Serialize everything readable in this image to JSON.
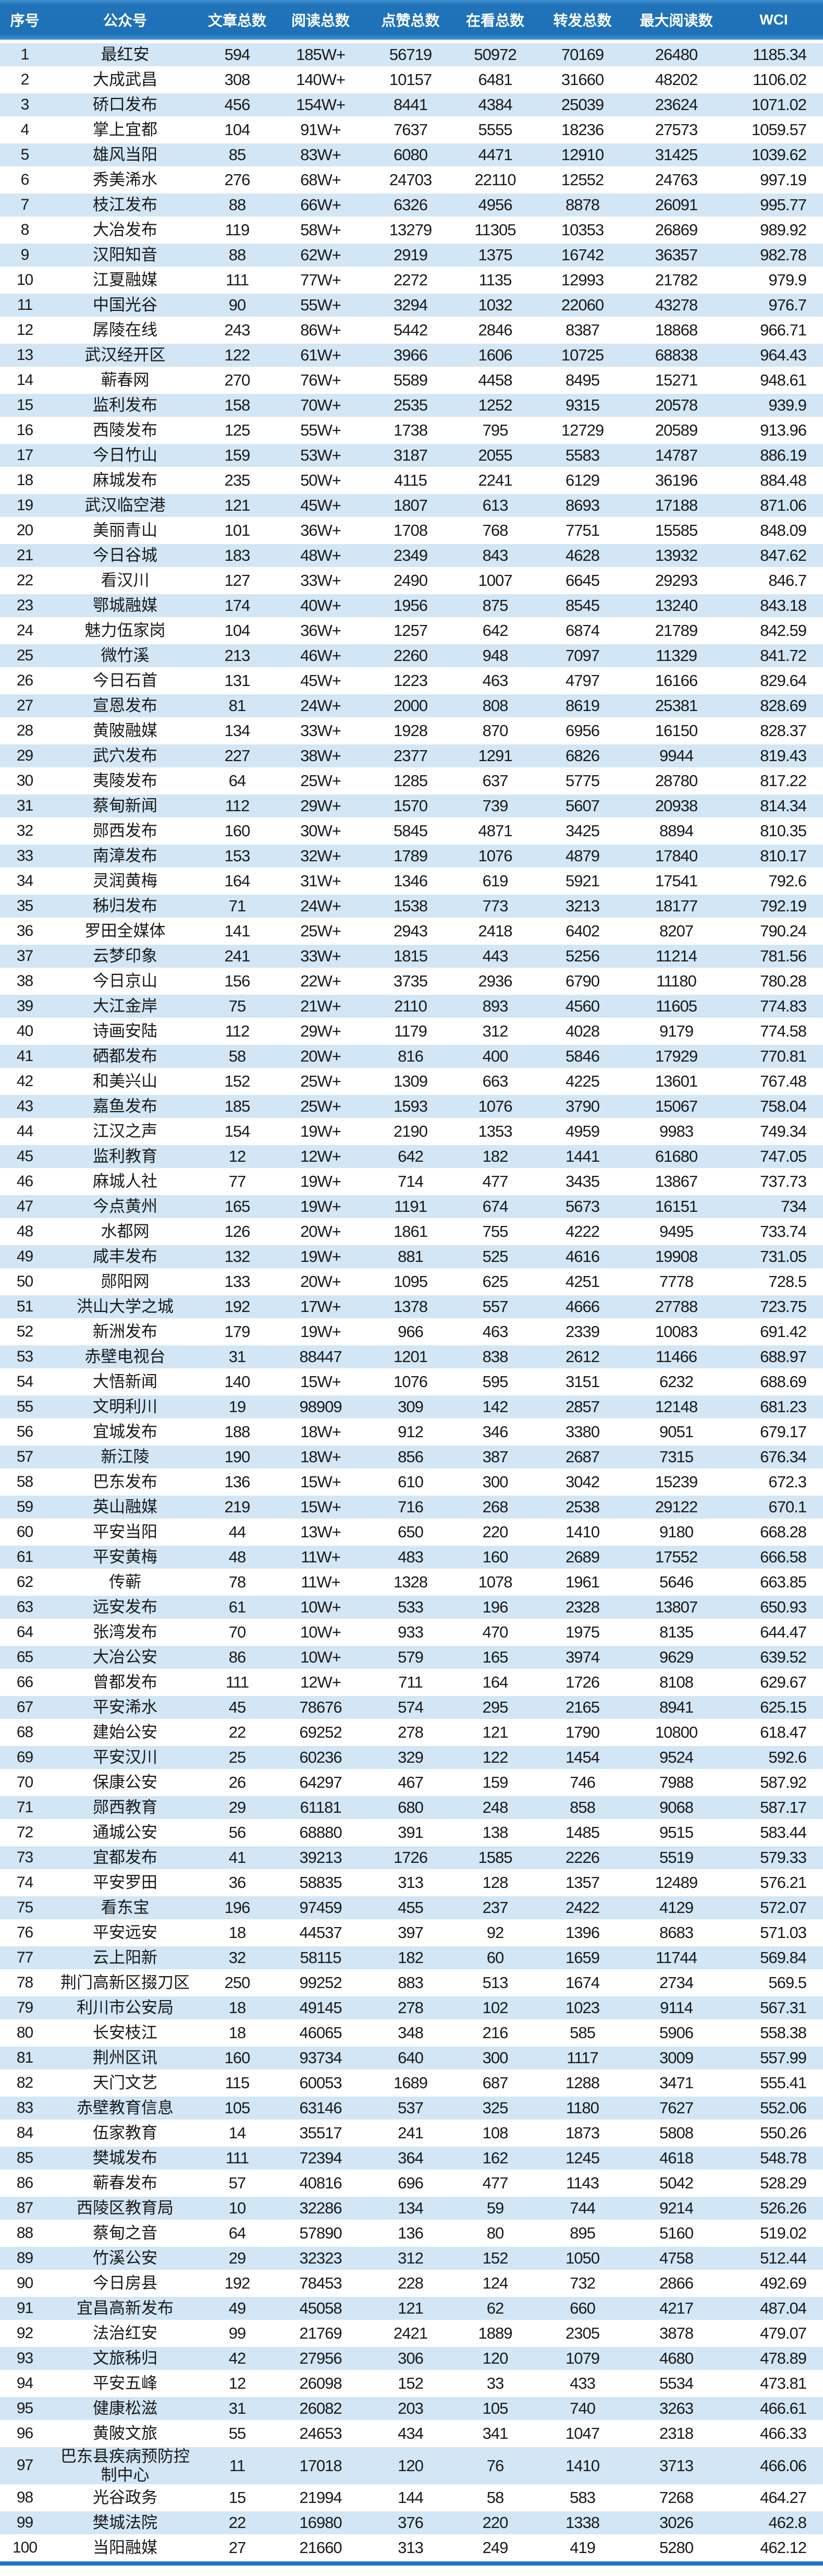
{
  "colors": {
    "header_bg": "#1F72B8",
    "header_text": "#FFFFFF",
    "row_alt_bg": "#D2E6F5",
    "row_bg": "#FFFFFF",
    "body_text": "#1A1A1A",
    "footer_bar": "#2176C7"
  },
  "table": {
    "columns": [
      "序号",
      "公众号",
      "文章总数",
      "阅读总数",
      "点赞总数",
      "在看总数",
      "转发总数",
      "最大阅读数",
      "WCI"
    ],
    "rows": [
      [
        "1",
        "最红安",
        "594",
        "185W+",
        "56719",
        "50972",
        "70169",
        "26480",
        "1185.34"
      ],
      [
        "2",
        "大成武昌",
        "308",
        "140W+",
        "10157",
        "6481",
        "31660",
        "48202",
        "1106.02"
      ],
      [
        "3",
        "硚口发布",
        "456",
        "154W+",
        "8441",
        "4384",
        "25039",
        "23624",
        "1071.02"
      ],
      [
        "4",
        "掌上宜都",
        "104",
        "91W+",
        "7637",
        "5555",
        "18236",
        "27573",
        "1059.57"
      ],
      [
        "5",
        "雄风当阳",
        "85",
        "83W+",
        "6080",
        "4471",
        "12910",
        "31425",
        "1039.62"
      ],
      [
        "6",
        "秀美浠水",
        "276",
        "68W+",
        "24703",
        "22110",
        "12552",
        "24763",
        "997.19"
      ],
      [
        "7",
        "枝江发布",
        "88",
        "66W+",
        "6326",
        "4956",
        "8878",
        "26091",
        "995.77"
      ],
      [
        "8",
        "大冶发布",
        "119",
        "58W+",
        "13279",
        "11305",
        "10353",
        "26869",
        "989.92"
      ],
      [
        "9",
        "汉阳知音",
        "88",
        "62W+",
        "2919",
        "1375",
        "16742",
        "36357",
        "982.78"
      ],
      [
        "10",
        "江夏融媒",
        "111",
        "77W+",
        "2272",
        "1135",
        "12993",
        "21782",
        "979.9"
      ],
      [
        "11",
        "中国光谷",
        "90",
        "55W+",
        "3294",
        "1032",
        "22060",
        "43278",
        "976.7"
      ],
      [
        "12",
        "孱陵在线",
        "243",
        "86W+",
        "5442",
        "2846",
        "8387",
        "18868",
        "966.71"
      ],
      [
        "13",
        "武汉经开区",
        "122",
        "61W+",
        "3966",
        "1606",
        "10725",
        "68838",
        "964.43"
      ],
      [
        "14",
        "蕲春网",
        "270",
        "76W+",
        "5589",
        "4458",
        "8495",
        "15271",
        "948.61"
      ],
      [
        "15",
        "监利发布",
        "158",
        "70W+",
        "2535",
        "1252",
        "9315",
        "20578",
        "939.9"
      ],
      [
        "16",
        "西陵发布",
        "125",
        "55W+",
        "1738",
        "795",
        "12729",
        "20589",
        "913.96"
      ],
      [
        "17",
        "今日竹山",
        "159",
        "53W+",
        "3187",
        "2055",
        "5583",
        "14787",
        "886.19"
      ],
      [
        "18",
        "麻城发布",
        "235",
        "50W+",
        "4115",
        "2241",
        "6129",
        "36196",
        "884.48"
      ],
      [
        "19",
        "武汉临空港",
        "121",
        "45W+",
        "1807",
        "613",
        "8693",
        "17188",
        "871.06"
      ],
      [
        "20",
        "美丽青山",
        "101",
        "36W+",
        "1708",
        "768",
        "7751",
        "15585",
        "848.09"
      ],
      [
        "21",
        "今日谷城",
        "183",
        "48W+",
        "2349",
        "843",
        "4628",
        "13932",
        "847.62"
      ],
      [
        "22",
        "看汉川",
        "127",
        "33W+",
        "2490",
        "1007",
        "6645",
        "29293",
        "846.7"
      ],
      [
        "23",
        "鄂城融媒",
        "174",
        "40W+",
        "1956",
        "875",
        "8545",
        "13240",
        "843.18"
      ],
      [
        "24",
        "魅力伍家岗",
        "104",
        "36W+",
        "1257",
        "642",
        "6874",
        "21789",
        "842.59"
      ],
      [
        "25",
        "微竹溪",
        "213",
        "46W+",
        "2260",
        "948",
        "7097",
        "11329",
        "841.72"
      ],
      [
        "26",
        "今日石首",
        "131",
        "45W+",
        "1223",
        "463",
        "4797",
        "16166",
        "829.64"
      ],
      [
        "27",
        "宣恩发布",
        "81",
        "24W+",
        "2000",
        "808",
        "8619",
        "25381",
        "828.69"
      ],
      [
        "28",
        "黄陂融媒",
        "134",
        "33W+",
        "1928",
        "870",
        "6956",
        "16150",
        "828.37"
      ],
      [
        "29",
        "武穴发布",
        "227",
        "38W+",
        "2377",
        "1291",
        "6826",
        "9944",
        "819.43"
      ],
      [
        "30",
        "夷陵发布",
        "64",
        "25W+",
        "1285",
        "637",
        "5775",
        "28780",
        "817.22"
      ],
      [
        "31",
        "蔡甸新闻",
        "112",
        "29W+",
        "1570",
        "739",
        "5607",
        "20938",
        "814.34"
      ],
      [
        "32",
        "郧西发布",
        "160",
        "30W+",
        "5845",
        "4871",
        "3425",
        "8894",
        "810.35"
      ],
      [
        "33",
        "南漳发布",
        "153",
        "32W+",
        "1789",
        "1076",
        "4879",
        "17840",
        "810.17"
      ],
      [
        "34",
        "灵润黄梅",
        "164",
        "31W+",
        "1346",
        "619",
        "5921",
        "17541",
        "792.6"
      ],
      [
        "35",
        "秭归发布",
        "71",
        "24W+",
        "1538",
        "773",
        "3213",
        "18177",
        "792.19"
      ],
      [
        "36",
        "罗田全媒体",
        "141",
        "25W+",
        "2943",
        "2418",
        "6402",
        "8207",
        "790.24"
      ],
      [
        "37",
        "云梦印象",
        "241",
        "33W+",
        "1815",
        "443",
        "5256",
        "11214",
        "781.56"
      ],
      [
        "38",
        "今日京山",
        "156",
        "22W+",
        "3735",
        "2936",
        "6790",
        "11180",
        "780.28"
      ],
      [
        "39",
        "大江金岸",
        "75",
        "21W+",
        "2110",
        "893",
        "4560",
        "11605",
        "774.83"
      ],
      [
        "40",
        "诗画安陆",
        "112",
        "29W+",
        "1179",
        "312",
        "4028",
        "9179",
        "774.58"
      ],
      [
        "41",
        "硒都发布",
        "58",
        "20W+",
        "816",
        "400",
        "5846",
        "17929",
        "770.81"
      ],
      [
        "42",
        "和美兴山",
        "152",
        "25W+",
        "1309",
        "663",
        "4225",
        "13601",
        "767.48"
      ],
      [
        "43",
        "嘉鱼发布",
        "185",
        "25W+",
        "1593",
        "1076",
        "3790",
        "15067",
        "758.04"
      ],
      [
        "44",
        "江汉之声",
        "154",
        "19W+",
        "2190",
        "1353",
        "4959",
        "9983",
        "749.34"
      ],
      [
        "45",
        "监利教育",
        "12",
        "12W+",
        "642",
        "182",
        "1441",
        "61680",
        "747.05"
      ],
      [
        "46",
        "麻城人社",
        "77",
        "19W+",
        "714",
        "477",
        "3435",
        "13867",
        "737.73"
      ],
      [
        "47",
        "今点黄州",
        "165",
        "19W+",
        "1191",
        "674",
        "5673",
        "16151",
        "734"
      ],
      [
        "48",
        "水都网",
        "126",
        "20W+",
        "1861",
        "755",
        "4222",
        "9495",
        "733.74"
      ],
      [
        "49",
        "咸丰发布",
        "132",
        "19W+",
        "881",
        "525",
        "4616",
        "19908",
        "731.05"
      ],
      [
        "50",
        "郧阳网",
        "133",
        "20W+",
        "1095",
        "625",
        "4251",
        "7778",
        "728.5"
      ],
      [
        "51",
        "洪山大学之城",
        "192",
        "17W+",
        "1378",
        "557",
        "4666",
        "27788",
        "723.75"
      ],
      [
        "52",
        "新洲发布",
        "179",
        "19W+",
        "966",
        "463",
        "2339",
        "10083",
        "691.42"
      ],
      [
        "53",
        "赤壁电视台",
        "31",
        "88447",
        "1201",
        "838",
        "2612",
        "11466",
        "688.97"
      ],
      [
        "54",
        "大悟新闻",
        "140",
        "15W+",
        "1076",
        "595",
        "3151",
        "6232",
        "688.69"
      ],
      [
        "55",
        "文明利川",
        "19",
        "98909",
        "309",
        "142",
        "2857",
        "12148",
        "681.23"
      ],
      [
        "56",
        "宜城发布",
        "188",
        "18W+",
        "912",
        "346",
        "3380",
        "9051",
        "679.17"
      ],
      [
        "57",
        "新江陵",
        "190",
        "18W+",
        "856",
        "387",
        "2687",
        "7315",
        "676.34"
      ],
      [
        "58",
        "巴东发布",
        "136",
        "15W+",
        "610",
        "300",
        "3042",
        "15239",
        "672.3"
      ],
      [
        "59",
        "英山融媒",
        "219",
        "15W+",
        "716",
        "268",
        "2538",
        "29122",
        "670.1"
      ],
      [
        "60",
        "平安当阳",
        "44",
        "13W+",
        "650",
        "220",
        "1410",
        "9180",
        "668.28"
      ],
      [
        "61",
        "平安黄梅",
        "48",
        "11W+",
        "483",
        "160",
        "2689",
        "17552",
        "666.58"
      ],
      [
        "62",
        "传蕲",
        "78",
        "11W+",
        "1328",
        "1078",
        "1961",
        "5646",
        "663.85"
      ],
      [
        "63",
        "远安发布",
        "61",
        "10W+",
        "533",
        "196",
        "2328",
        "13807",
        "650.93"
      ],
      [
        "64",
        "张湾发布",
        "70",
        "10W+",
        "933",
        "470",
        "1975",
        "8135",
        "644.47"
      ],
      [
        "65",
        "大冶公安",
        "86",
        "10W+",
        "579",
        "165",
        "3974",
        "9629",
        "639.52"
      ],
      [
        "66",
        "曾都发布",
        "111",
        "12W+",
        "711",
        "164",
        "1726",
        "8108",
        "629.67"
      ],
      [
        "67",
        "平安浠水",
        "45",
        "78676",
        "574",
        "295",
        "2165",
        "8941",
        "625.15"
      ],
      [
        "68",
        "建始公安",
        "22",
        "69252",
        "278",
        "121",
        "1790",
        "10800",
        "618.47"
      ],
      [
        "69",
        "平安汉川",
        "25",
        "60236",
        "329",
        "122",
        "1454",
        "9524",
        "592.6"
      ],
      [
        "70",
        "保康公安",
        "26",
        "64297",
        "467",
        "159",
        "746",
        "7988",
        "587.92"
      ],
      [
        "71",
        "郧西教育",
        "29",
        "61181",
        "680",
        "248",
        "858",
        "9068",
        "587.17"
      ],
      [
        "72",
        "通城公安",
        "56",
        "68880",
        "391",
        "138",
        "1485",
        "9515",
        "583.44"
      ],
      [
        "73",
        "宜都发布",
        "41",
        "39213",
        "1726",
        "1585",
        "2226",
        "5519",
        "579.33"
      ],
      [
        "74",
        "平安罗田",
        "36",
        "58835",
        "313",
        "128",
        "1357",
        "12489",
        "576.21"
      ],
      [
        "75",
        "看东宝",
        "196",
        "97459",
        "455",
        "237",
        "2422",
        "4129",
        "572.07"
      ],
      [
        "76",
        "平安远安",
        "18",
        "44537",
        "397",
        "92",
        "1396",
        "8683",
        "571.03"
      ],
      [
        "77",
        "云上阳新",
        "32",
        "58115",
        "182",
        "60",
        "1659",
        "11744",
        "569.84"
      ],
      [
        "78",
        "荆门高新区掇刀区",
        "250",
        "99252",
        "883",
        "513",
        "1674",
        "2734",
        "569.5"
      ],
      [
        "79",
        "利川市公安局",
        "18",
        "49145",
        "278",
        "102",
        "1023",
        "9114",
        "567.31"
      ],
      [
        "80",
        "长安枝江",
        "18",
        "46065",
        "348",
        "216",
        "585",
        "5906",
        "558.38"
      ],
      [
        "81",
        "荆州区讯",
        "160",
        "93734",
        "640",
        "300",
        "1117",
        "3009",
        "557.99"
      ],
      [
        "82",
        "天门文艺",
        "115",
        "60053",
        "1689",
        "687",
        "1288",
        "3471",
        "555.41"
      ],
      [
        "83",
        "赤壁教育信息",
        "105",
        "63146",
        "537",
        "325",
        "1180",
        "7627",
        "552.06"
      ],
      [
        "84",
        "伍家教育",
        "14",
        "35517",
        "241",
        "108",
        "1873",
        "5808",
        "550.26"
      ],
      [
        "85",
        "樊城发布",
        "111",
        "72394",
        "364",
        "162",
        "1245",
        "4618",
        "548.78"
      ],
      [
        "86",
        "蕲春发布",
        "57",
        "40816",
        "696",
        "477",
        "1143",
        "5042",
        "528.29"
      ],
      [
        "87",
        "西陵区教育局",
        "10",
        "32286",
        "134",
        "59",
        "744",
        "9214",
        "526.26"
      ],
      [
        "88",
        "蔡甸之音",
        "64",
        "57890",
        "136",
        "80",
        "895",
        "5160",
        "519.02"
      ],
      [
        "89",
        "竹溪公安",
        "29",
        "32323",
        "312",
        "152",
        "1050",
        "4758",
        "512.44"
      ],
      [
        "90",
        "今日房县",
        "192",
        "78453",
        "228",
        "124",
        "732",
        "2866",
        "492.69"
      ],
      [
        "91",
        "宜昌高新发布",
        "49",
        "45058",
        "121",
        "62",
        "660",
        "4217",
        "487.04"
      ],
      [
        "92",
        "法治红安",
        "99",
        "21769",
        "2421",
        "1889",
        "2305",
        "3878",
        "479.07"
      ],
      [
        "93",
        "文旅秭归",
        "42",
        "27956",
        "306",
        "120",
        "1079",
        "4680",
        "478.89"
      ],
      [
        "94",
        "平安五峰",
        "12",
        "26098",
        "152",
        "33",
        "433",
        "5534",
        "473.81"
      ],
      [
        "95",
        "健康松滋",
        "31",
        "26082",
        "203",
        "105",
        "740",
        "3263",
        "466.61"
      ],
      [
        "96",
        "黄陂文旅",
        "55",
        "24653",
        "434",
        "341",
        "1047",
        "2318",
        "466.33"
      ],
      [
        "97",
        "巴东县疾病预防控制中心",
        "11",
        "17018",
        "120",
        "76",
        "1410",
        "3713",
        "466.06"
      ],
      [
        "98",
        "光谷政务",
        "15",
        "21994",
        "144",
        "58",
        "583",
        "7268",
        "464.27"
      ],
      [
        "99",
        "樊城法院",
        "22",
        "16980",
        "376",
        "220",
        "1338",
        "3026",
        "462.8"
      ],
      [
        "100",
        "当阳融媒",
        "27",
        "21660",
        "313",
        "249",
        "419",
        "5280",
        "462.12"
      ]
    ]
  }
}
